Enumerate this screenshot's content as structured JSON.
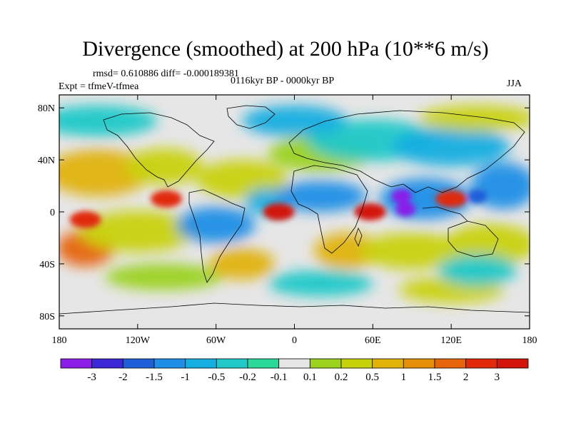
{
  "title": "Divergence (smoothed) at 200 hPa (10**6 m/s)",
  "stats": "rmsd= 0.610886 diff= -0.000189381",
  "experiment": "Expt = tfmeV-tfmea",
  "period": "0116kyr BP - 0000kyr BP",
  "season": "JJA",
  "axes": {
    "lat_labels": [
      "80N",
      "40N",
      "0",
      "40S",
      "80S"
    ],
    "lon_labels": [
      "180",
      "120W",
      "60W",
      "0",
      "60E",
      "120E",
      "180"
    ]
  },
  "colorbar": {
    "labels": [
      "-3",
      "-2",
      "-1.5",
      "-1",
      "-0.5",
      "-0.2",
      "-0.1",
      "0.1",
      "0.2",
      "0.5",
      "1",
      "1.5",
      "2",
      "3"
    ],
    "colors": [
      "#8a1ee8",
      "#3c28d6",
      "#1e5fd8",
      "#1e8ee6",
      "#14aee0",
      "#20c8c8",
      "#2ad89a",
      "#e6e6e6",
      "#9ad21e",
      "#c8d20a",
      "#e0b20a",
      "#e6900a",
      "#e6640a",
      "#e02a0a",
      "#d2140a"
    ]
  },
  "colors": {
    "land_fill": "#e6e6e6",
    "coast": "#000000"
  },
  "features": {
    "positive_maxima": [
      {
        "lon": -160,
        "lat": -6,
        "level": "2"
      },
      {
        "lon": -98,
        "lat": 10,
        "level": "2"
      },
      {
        "lon": -12,
        "lat": 0,
        "level": "3"
      },
      {
        "lon": 58,
        "lat": 0,
        "level": "3"
      },
      {
        "lon": 120,
        "lat": 10,
        "level": "2"
      }
    ],
    "negative_minima": [
      {
        "lon": 82,
        "lat": 12,
        "level": "-3"
      },
      {
        "lon": 85,
        "lat": 2,
        "level": "-3"
      },
      {
        "lon": 140,
        "lat": 12,
        "level": "-1.5"
      }
    ]
  }
}
